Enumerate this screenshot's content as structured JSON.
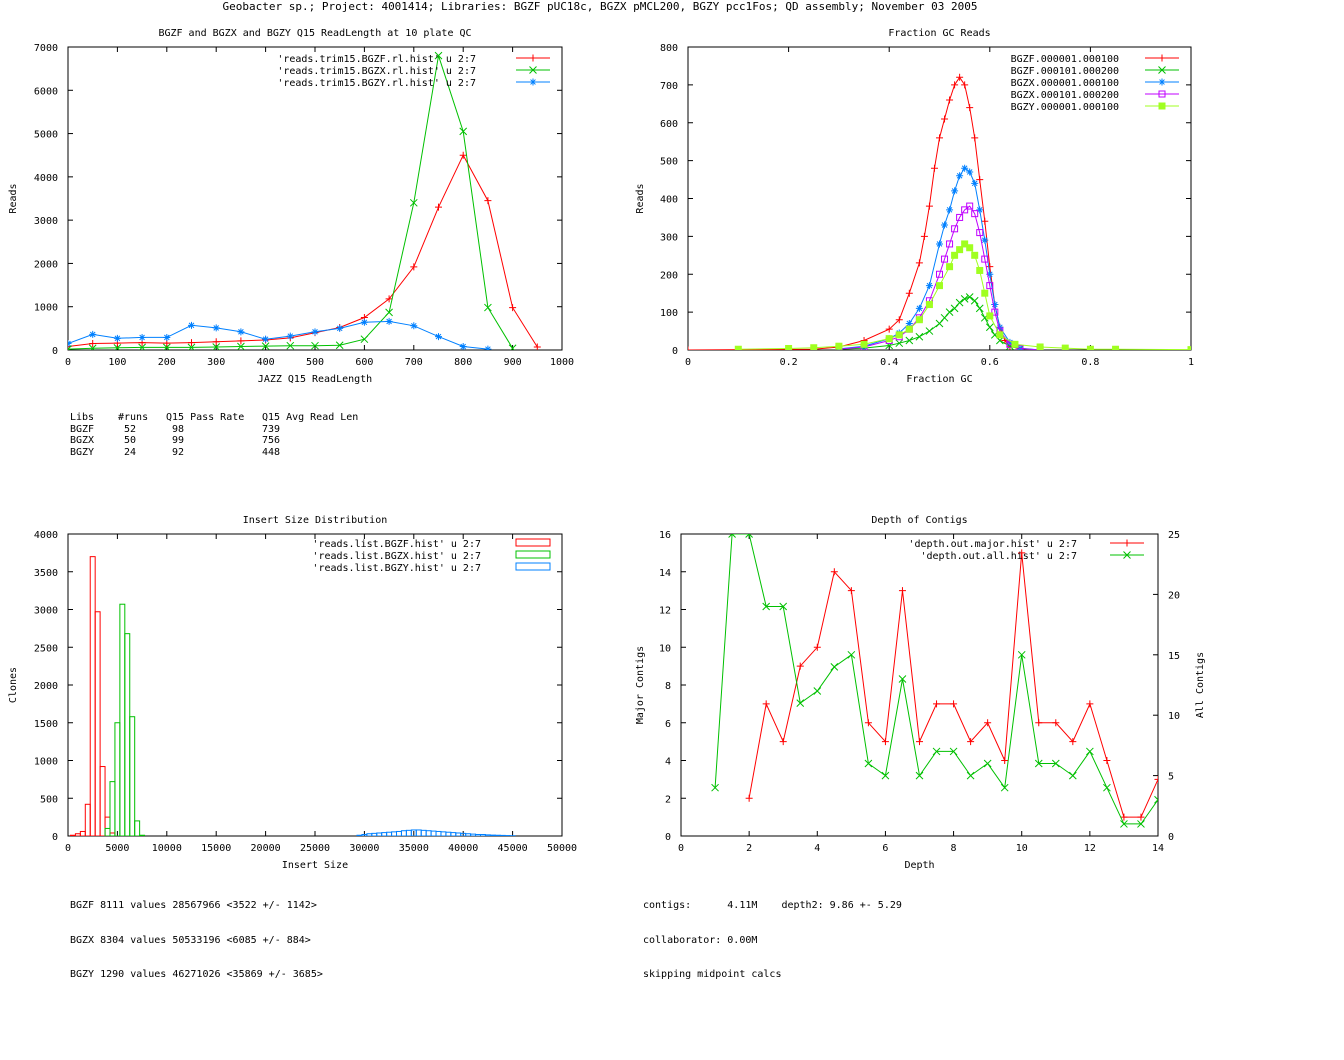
{
  "page": {
    "title": "Geobacter sp.; Project: 4001414; Libraries: BGZF pUC18c, BGZX pMCL200, BGZY pcc1Fos; QD assembly; November 03 2005"
  },
  "chart_data": [
    {
      "id": "readlen",
      "type": "line",
      "title": "BGZF and BGZX and BGZY Q15 ReadLength at 10 plate QC",
      "xlabel": "JAZZ Q15 ReadLength",
      "ylabel": "Reads",
      "xlim": [
        0,
        1000
      ],
      "ylim": [
        0,
        7000
      ],
      "xticks": [
        0,
        100,
        200,
        300,
        400,
        500,
        600,
        700,
        800,
        900,
        1000
      ],
      "yticks": [
        0,
        1000,
        2000,
        3000,
        4000,
        5000,
        6000,
        7000
      ],
      "legend": "top-right",
      "series": [
        {
          "name": "'reads.trim15.BGZF.rl.hist' u 2:7",
          "color": "#ff0000",
          "marker": "plus",
          "x": [
            0,
            50,
            100,
            150,
            200,
            250,
            300,
            350,
            400,
            450,
            500,
            550,
            600,
            650,
            700,
            750,
            800,
            850,
            900,
            950
          ],
          "y": [
            80,
            150,
            160,
            170,
            160,
            170,
            190,
            210,
            230,
            280,
            400,
            520,
            750,
            1180,
            1920,
            3300,
            4500,
            3450,
            980,
            70
          ]
        },
        {
          "name": "'reads.trim15.BGZX.rl.hist' u 2:7",
          "color": "#00c000",
          "marker": "x",
          "x": [
            0,
            50,
            100,
            150,
            200,
            250,
            300,
            350,
            400,
            450,
            500,
            550,
            600,
            650,
            700,
            750,
            800,
            850,
            900
          ],
          "y": [
            20,
            40,
            50,
            60,
            60,
            60,
            70,
            80,
            90,
            100,
            100,
            110,
            250,
            870,
            3400,
            6800,
            5050,
            980,
            40
          ]
        },
        {
          "name": "'reads.trim15.BGZY.rl.hist' u 2:7",
          "color": "#0080ff",
          "marker": "star",
          "x": [
            0,
            50,
            100,
            150,
            200,
            250,
            300,
            350,
            400,
            450,
            500,
            550,
            600,
            650,
            700,
            750,
            800,
            850
          ],
          "y": [
            150,
            360,
            270,
            290,
            290,
            570,
            510,
            420,
            250,
            320,
            420,
            500,
            640,
            660,
            560,
            310,
            80,
            20
          ]
        }
      ],
      "stats_table": {
        "headers": [
          "Libs",
          "#runs",
          "Q15 Pass Rate",
          "Q15 Avg Read Len"
        ],
        "rows": [
          [
            "BGZF",
            "52",
            "98",
            "739"
          ],
          [
            "BGZX",
            "50",
            "99",
            "756"
          ],
          [
            "BGZY",
            "24",
            "92",
            "448"
          ]
        ]
      }
    },
    {
      "id": "gc",
      "type": "line",
      "title": "Fraction GC Reads",
      "xlabel": "Fraction GC",
      "ylabel": "Reads",
      "xlim": [
        0,
        1
      ],
      "ylim": [
        0,
        800
      ],
      "xticks": [
        0,
        0.2,
        0.4,
        0.6,
        0.8,
        1
      ],
      "yticks": [
        0,
        100,
        200,
        300,
        400,
        500,
        600,
        700,
        800
      ],
      "legend": "top-right",
      "series": [
        {
          "name": "BGZF.000001.000100",
          "color": "#ff0000",
          "marker": "plus",
          "x": [
            0,
            0.25,
            0.3,
            0.35,
            0.4,
            0.42,
            0.44,
            0.46,
            0.47,
            0.48,
            0.49,
            0.5,
            0.51,
            0.52,
            0.53,
            0.54,
            0.55,
            0.56,
            0.57,
            0.58,
            0.59,
            0.6,
            0.61,
            0.62,
            0.63,
            0.64,
            0.66,
            0.7
          ],
          "y": [
            0,
            2,
            8,
            25,
            55,
            80,
            150,
            230,
            300,
            380,
            480,
            560,
            610,
            660,
            700,
            720,
            700,
            640,
            560,
            450,
            340,
            220,
            120,
            60,
            25,
            10,
            3,
            0
          ]
        },
        {
          "name": "BGZF.000101.000200",
          "color": "#00c000",
          "marker": "x",
          "x": [
            0.3,
            0.35,
            0.4,
            0.42,
            0.44,
            0.46,
            0.48,
            0.5,
            0.51,
            0.52,
            0.53,
            0.54,
            0.55,
            0.56,
            0.57,
            0.58,
            0.59,
            0.6,
            0.61,
            0.62,
            0.64,
            0.66,
            0.7
          ],
          "y": [
            2,
            5,
            12,
            18,
            25,
            35,
            50,
            70,
            85,
            100,
            110,
            125,
            135,
            140,
            130,
            110,
            85,
            60,
            40,
            25,
            10,
            3,
            0
          ]
        },
        {
          "name": "BGZX.000001.000100",
          "color": "#0080ff",
          "marker": "star",
          "x": [
            0.3,
            0.35,
            0.4,
            0.42,
            0.44,
            0.46,
            0.48,
            0.5,
            0.51,
            0.52,
            0.53,
            0.54,
            0.55,
            0.56,
            0.57,
            0.58,
            0.59,
            0.6,
            0.61,
            0.62,
            0.64,
            0.66,
            0.7
          ],
          "y": [
            3,
            10,
            30,
            45,
            70,
            110,
            170,
            280,
            330,
            370,
            420,
            460,
            480,
            470,
            440,
            370,
            290,
            200,
            120,
            60,
            20,
            5,
            0
          ]
        },
        {
          "name": "BGZX.000101.000200",
          "color": "#c000ff",
          "marker": "square-open",
          "x": [
            0.3,
            0.35,
            0.4,
            0.42,
            0.44,
            0.46,
            0.48,
            0.5,
            0.51,
            0.52,
            0.53,
            0.54,
            0.55,
            0.56,
            0.57,
            0.58,
            0.59,
            0.6,
            0.61,
            0.62,
            0.64,
            0.66,
            0.7
          ],
          "y": [
            2,
            8,
            25,
            35,
            55,
            85,
            130,
            200,
            240,
            280,
            320,
            350,
            370,
            380,
            360,
            310,
            240,
            170,
            100,
            50,
            15,
            4,
            0
          ]
        },
        {
          "name": "BGZY.000001.000100",
          "color": "#a0ff20",
          "marker": "square-filled",
          "x": [
            0.1,
            0.2,
            0.25,
            0.3,
            0.35,
            0.4,
            0.42,
            0.44,
            0.46,
            0.48,
            0.5,
            0.52,
            0.53,
            0.54,
            0.55,
            0.56,
            0.57,
            0.58,
            0.59,
            0.6,
            0.62,
            0.65,
            0.7,
            0.75,
            0.8,
            0.85,
            1.0
          ],
          "y": [
            2,
            4,
            6,
            10,
            15,
            30,
            40,
            55,
            80,
            120,
            170,
            220,
            250,
            265,
            280,
            270,
            250,
            210,
            150,
            90,
            40,
            15,
            8,
            5,
            2,
            2,
            1
          ]
        }
      ]
    },
    {
      "id": "insert",
      "type": "bar",
      "title": "Insert Size Distribution",
      "xlabel": "Insert Size",
      "ylabel": "Clones",
      "xlim": [
        0,
        50000
      ],
      "ylim": [
        0,
        4000
      ],
      "xticks": [
        0,
        5000,
        10000,
        15000,
        20000,
        25000,
        30000,
        35000,
        40000,
        45000,
        50000
      ],
      "yticks": [
        0,
        500,
        1000,
        1500,
        2000,
        2500,
        3000,
        3500,
        4000
      ],
      "legend": "top-right",
      "bin_width": 500,
      "series": [
        {
          "name": "'reads.list.BGZF.hist' u 2:7",
          "color": "#ff0000",
          "x": [
            500,
            1000,
            1500,
            2000,
            2500,
            3000,
            3500,
            4000,
            4500
          ],
          "y": [
            10,
            30,
            60,
            420,
            3700,
            2970,
            920,
            250,
            40
          ]
        },
        {
          "name": "'reads.list.BGZX.hist' u 2:7",
          "color": "#00c000",
          "x": [
            4000,
            4500,
            5000,
            5500,
            6000,
            6500,
            7000,
            7500
          ],
          "y": [
            100,
            720,
            1500,
            3070,
            2680,
            1580,
            200,
            10
          ]
        },
        {
          "name": "'reads.list.BGZY.hist' u 2:7",
          "color": "#0080ff",
          "x": [
            29500,
            30000,
            30500,
            31000,
            31500,
            32000,
            32500,
            33000,
            33500,
            34000,
            34500,
            35000,
            35500,
            36000,
            36500,
            37000,
            37500,
            38000,
            38500,
            39000,
            39500,
            40000,
            40500,
            41000,
            41500,
            42000,
            42500,
            43000,
            43500,
            44000,
            44500,
            45000
          ],
          "y": [
            10,
            20,
            30,
            35,
            40,
            45,
            50,
            55,
            60,
            70,
            75,
            80,
            80,
            75,
            70,
            65,
            60,
            55,
            50,
            45,
            40,
            35,
            30,
            25,
            20,
            20,
            15,
            12,
            10,
            8,
            6,
            4
          ]
        }
      ],
      "stats": [
        "BGZF 8111 values 28567966 <3522 +/- 1142>",
        "BGZX 8304 values 50533196 <6085 +/- 884>",
        "BGZY 1290 values 46271026 <35869 +/- 3685>"
      ]
    },
    {
      "id": "depth",
      "type": "line",
      "title": "Depth of Contigs",
      "xlabel": "Depth",
      "ylabel": "Major Contigs",
      "y2label": "All Contigs",
      "xlim": [
        0,
        14
      ],
      "ylim": [
        0,
        16
      ],
      "y2lim": [
        0,
        25
      ],
      "xticks": [
        0,
        2,
        4,
        6,
        8,
        10,
        12,
        14
      ],
      "yticks": [
        0,
        2,
        4,
        6,
        8,
        10,
        12,
        14,
        16
      ],
      "y2ticks": [
        0,
        5,
        10,
        15,
        20,
        25
      ],
      "legend": "top-right",
      "series": [
        {
          "name": "'depth.out.major.hist' u 2:7",
          "color": "#ff0000",
          "marker": "plus",
          "axis": "y",
          "x": [
            2,
            2.5,
            3,
            3.5,
            4,
            4.5,
            5,
            5.5,
            6,
            6.5,
            7,
            7.5,
            8,
            8.5,
            9,
            9.5,
            10,
            10.5,
            11,
            11.5,
            12,
            12.5,
            13,
            13.5,
            14
          ],
          "y": [
            2,
            7,
            5,
            9,
            10,
            14,
            13,
            6,
            5,
            13,
            5,
            7,
            7,
            5,
            6,
            4,
            15,
            6,
            6,
            5,
            7,
            4,
            1,
            1,
            3
          ]
        },
        {
          "name": "'depth.out.all.hist' u 2:7",
          "color": "#00c000",
          "marker": "x",
          "axis": "y2",
          "x": [
            1,
            1.5,
            2,
            2.5,
            3,
            3.5,
            4,
            4.5,
            5,
            5.5,
            6,
            6.5,
            7,
            7.5,
            8,
            8.5,
            9,
            9.5,
            10,
            10.5,
            11,
            11.5,
            12,
            12.5,
            13,
            13.5,
            14
          ],
          "y": [
            4,
            25,
            25,
            19,
            19,
            11,
            12,
            14,
            15,
            6,
            5,
            13,
            5,
            7,
            7,
            5,
            6,
            4,
            15,
            6,
            6,
            5,
            7,
            4,
            1,
            1,
            3
          ]
        }
      ],
      "stats": [
        "contigs:      4.11M    depth2: 9.86 +- 5.29",
        "collaborator: 0.00M",
        "skipping midpoint calcs"
      ]
    }
  ]
}
